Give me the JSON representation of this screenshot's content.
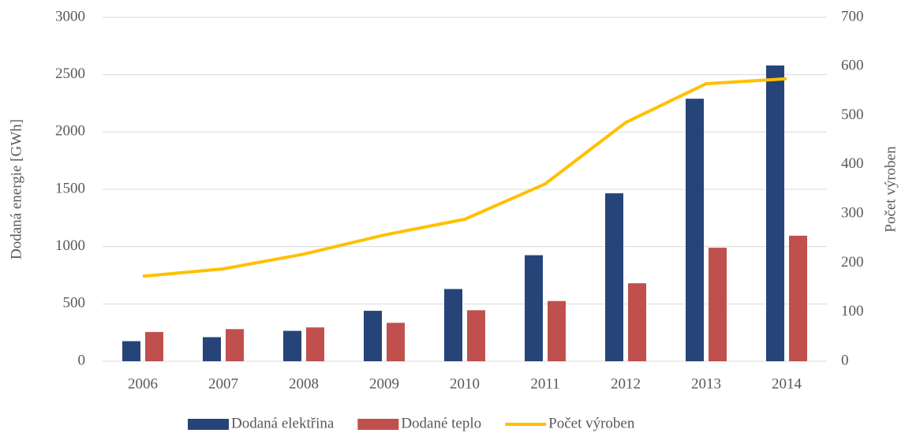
{
  "chart_data": {
    "type": "bar_line",
    "categories": [
      "2006",
      "2007",
      "2008",
      "2009",
      "2010",
      "2011",
      "2012",
      "2013",
      "2014"
    ],
    "series": [
      {
        "name": "Dodaná elektřina",
        "color": "#264478",
        "type": "bar",
        "values": [
          175,
          210,
          265,
          440,
          630,
          925,
          1465,
          2290,
          2580
        ]
      },
      {
        "name": "Dodané teplo",
        "color": "#c0504d",
        "type": "bar",
        "values": [
          255,
          280,
          295,
          335,
          445,
          525,
          680,
          990,
          1095
        ]
      },
      {
        "name": "Počet výroben",
        "color": "#ffc000",
        "type": "line",
        "axis": "y2",
        "values": [
          173,
          188,
          218,
          257,
          289,
          361,
          486,
          565,
          575
        ]
      }
    ],
    "ylabel": "Dodaná energie [GWh]",
    "y2label": "Počet výroben",
    "ylim": [
      0,
      3000
    ],
    "yticks": [
      0,
      500,
      1000,
      1500,
      2000,
      2500,
      3000
    ],
    "y2lim": [
      0,
      700
    ],
    "y2ticks": [
      0,
      100,
      200,
      300,
      400,
      500,
      600,
      700
    ],
    "grid": true,
    "legend": "bottom"
  }
}
